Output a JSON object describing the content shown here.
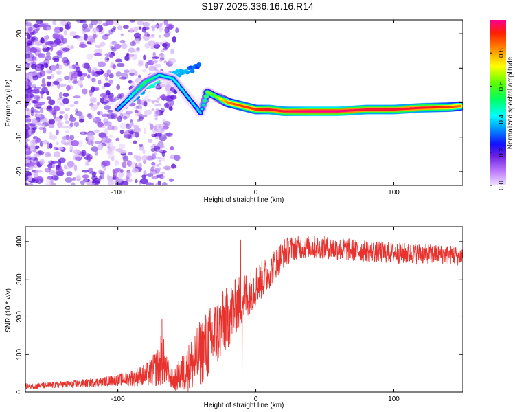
{
  "title": "S197.2025.336.16.16.R14",
  "colors": {
    "snr_line": "#e8322e",
    "axis": "#000000",
    "ridge": "#e8322e",
    "background": "#ffffff"
  },
  "chart_data": [
    {
      "type": "heatmap",
      "name": "spectrogram",
      "xlabel": "Height of straight line (km)",
      "ylabel": "Frequency (Hz)",
      "xlim": [
        -167,
        150
      ],
      "ylim": [
        -24,
        24
      ],
      "xticks": [
        -100,
        0,
        100
      ],
      "yticks": [
        -20,
        -10,
        0,
        10,
        20
      ],
      "colorbar": {
        "label": "Normalized spectral amplitude",
        "range": [
          0,
          1
        ],
        "ticks": [
          "0.0",
          "0.2",
          "0.4",
          "0.6",
          "0.8"
        ],
        "colormap": "rainbow"
      },
      "ridge": {
        "x": [
          -100,
          -90,
          -80,
          -70,
          -60,
          -50,
          -40,
          -35,
          -30,
          -20,
          -10,
          0,
          10,
          20,
          40,
          60,
          80,
          100,
          120,
          140,
          148
        ],
        "y": [
          -2,
          2,
          6,
          8,
          7,
          2,
          -3,
          3,
          2,
          0,
          -1,
          -2,
          -2,
          -2.5,
          -2.5,
          -2.5,
          -2,
          -2,
          -1.5,
          -1.3,
          -1
        ],
        "amplitude": [
          0.3,
          0.4,
          0.5,
          0.4,
          0.4,
          0.35,
          0.35,
          0.6,
          0.55,
          0.8,
          0.85,
          0.85,
          0.9,
          0.9,
          0.95,
          0.95,
          0.9,
          0.9,
          0.9,
          0.85,
          0.8
        ]
      },
      "upper_ridge": {
        "x": [
          -100,
          -90,
          -80,
          -70,
          -60,
          -50,
          -45,
          -40
        ],
        "y": [
          -1,
          1,
          4,
          7,
          8,
          9,
          10,
          12
        ],
        "amplitude": [
          0.3,
          0.35,
          0.4,
          0.45,
          0.4,
          0.35,
          0.3,
          0.3
        ]
      }
    },
    {
      "type": "line",
      "name": "snr",
      "xlabel": "Height of straight line (km)",
      "ylabel": "SNR (10 * v/v)",
      "xlim": [
        -167,
        150
      ],
      "ylim": [
        0,
        440
      ],
      "xticks": [
        -100,
        0,
        100
      ],
      "yticks": [
        0,
        100,
        200,
        300,
        400
      ],
      "series": [
        {
          "name": "SNR",
          "x": [
            -167,
            -150,
            -130,
            -110,
            -100,
            -90,
            -80,
            -75,
            -70,
            -68,
            -65,
            -60,
            -55,
            -50,
            -45,
            -40,
            -35,
            -30,
            -25,
            -20,
            -15,
            -10,
            -5,
            0,
            5,
            10,
            15,
            20,
            25,
            30,
            40,
            50,
            60,
            70,
            80,
            90,
            100,
            110,
            120,
            130,
            140,
            150
          ],
          "y": [
            15,
            18,
            22,
            28,
            32,
            38,
            45,
            55,
            70,
            95,
            60,
            30,
            45,
            60,
            80,
            105,
            125,
            150,
            175,
            200,
            225,
            245,
            265,
            285,
            300,
            320,
            345,
            370,
            380,
            385,
            385,
            385,
            380,
            378,
            375,
            372,
            370,
            368,
            368,
            366,
            365,
            362
          ],
          "noise": [
            8,
            8,
            10,
            12,
            15,
            22,
            30,
            40,
            55,
            80,
            40,
            25,
            45,
            60,
            80,
            90,
            95,
            95,
            90,
            85,
            75,
            70,
            60,
            55,
            50,
            45,
            40,
            40,
            35,
            30,
            30,
            30,
            30,
            30,
            28,
            28,
            28,
            28,
            28,
            26,
            26,
            26
          ]
        }
      ],
      "peaks": [
        {
          "x": -68,
          "y": 195
        },
        {
          "x": -11,
          "y": 405
        },
        {
          "x": -10,
          "y": 10
        }
      ]
    }
  ]
}
